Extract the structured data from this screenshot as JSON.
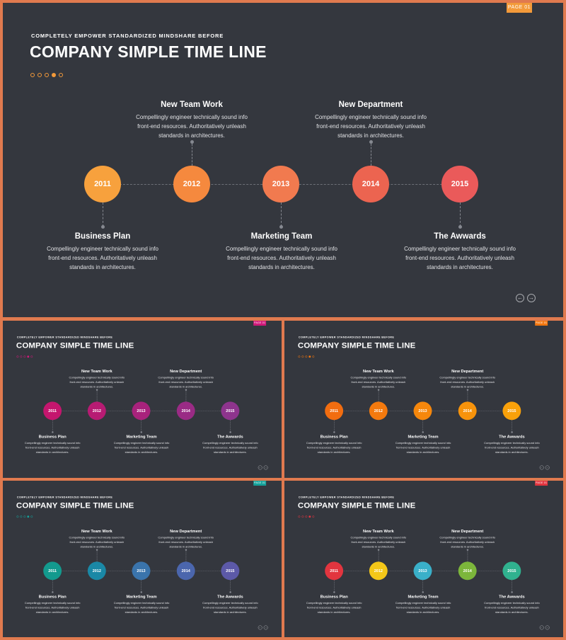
{
  "slides": [
    {
      "page_badge": "PAGE 01",
      "subtitle": "COMPLETELY EMPOWER STANDARDIZED MINDSHARE BEFORE",
      "title": "COMPANY SIMPLE TIME LINE",
      "accent": "#f39a3a",
      "dot_color": "#f39a3a",
      "circle_colors": [
        "#f7a13d",
        "#f5893e",
        "#f17a4f",
        "#ec6450",
        "#ea5a5a"
      ],
      "years": [
        "2011",
        "2012",
        "2013",
        "2014",
        "2015"
      ],
      "top_milestones": [
        {
          "title": "New Team Work",
          "desc": "Compellingly engineer technically sound info front-end resources. Authoritatively unleash standards in architectures."
        },
        {
          "title": "New Department",
          "desc": "Compellingly engineer technically sound info front-end resources. Authoritatively unleash standards in architectures."
        }
      ],
      "bottom_milestones": [
        {
          "title": "Business Plan",
          "desc": "Compellingly engineer technically sound info front-end resources. Authoritatively unleash standards in architectures."
        },
        {
          "title": "Marketing Team",
          "desc": "Compellingly engineer technically sound info front-end resources. Authoritatively unleash standards in architectures."
        },
        {
          "title": "The Awwards",
          "desc": "Compellingly engineer technically sound info front-end resources. Authoritatively unleash standards in architectures."
        }
      ],
      "nav_prev": "←",
      "nav_next": "→"
    },
    {
      "page_badge": "PAGE 01",
      "subtitle": "COMPLETELY EMPOWER STANDARDIZED MINDSHARE BEFORE",
      "title": "COMPANY SIMPLE TIME LINE",
      "accent": "#d1197a",
      "dot_color": "#d1197a",
      "circle_colors": [
        "#c4166e",
        "#b71b73",
        "#a8227c",
        "#9a2b85",
        "#8e348d"
      ],
      "years": [
        "2011",
        "2012",
        "2013",
        "2014",
        "2015"
      ],
      "top_milestones": [
        {
          "title": "New Team Work",
          "desc": "Compellingly engineer technically sound info front-end resources. Authoritatively unleash standards in architectures."
        },
        {
          "title": "New Department",
          "desc": "Compellingly engineer technically sound info front-end resources. Authoritatively unleash standards in architectures."
        }
      ],
      "bottom_milestones": [
        {
          "title": "Business Plan",
          "desc": "Compellingly engineer technically sound info front-end resources. Authoritatively unleash standards in architectures."
        },
        {
          "title": "Marketing Team",
          "desc": "Compellingly engineer technically sound info front-end resources. Authoritatively unleash standards in architectures."
        },
        {
          "title": "The Awwards",
          "desc": "Compellingly engineer technically sound info front-end resources. Authoritatively unleash standards in architectures."
        }
      ],
      "nav_prev": "←",
      "nav_next": "→"
    },
    {
      "page_badge": "PAGE 01",
      "subtitle": "COMPLETELY EMPOWER STANDARDIZED MINDSHARE BEFORE",
      "title": "COMPANY SIMPLE TIME LINE",
      "accent": "#f2760f",
      "dot_color": "#f2760f",
      "circle_colors": [
        "#f26d10",
        "#f47a0e",
        "#f6870c",
        "#f7930b",
        "#f9a10a"
      ],
      "years": [
        "2011",
        "2012",
        "2013",
        "2014",
        "2015"
      ],
      "top_milestones": [
        {
          "title": "New Team Work",
          "desc": "Compellingly engineer technically sound info front-end resources. Authoritatively unleash standards in architectures."
        },
        {
          "title": "New Department",
          "desc": "Compellingly engineer technically sound info front-end resources. Authoritatively unleash standards in architectures."
        }
      ],
      "bottom_milestones": [
        {
          "title": "Business Plan",
          "desc": "Compellingly engineer technically sound info front-end resources. Authoritatively unleash standards in architectures."
        },
        {
          "title": "Marketing Team",
          "desc": "Compellingly engineer technically sound info front-end resources. Authoritatively unleash standards in architectures."
        },
        {
          "title": "The Awwards",
          "desc": "Compellingly engineer technically sound info front-end resources. Authoritatively unleash standards in architectures."
        }
      ],
      "nav_prev": "←",
      "nav_next": "→"
    },
    {
      "page_badge": "PAGE 01",
      "subtitle": "COMPLETELY EMPOWER STANDARDIZED MINDSHARE BEFORE",
      "title": "COMPANY SIMPLE TIME LINE",
      "accent": "#15a19a",
      "dot_color": "#15a19a",
      "circle_colors": [
        "#139a8e",
        "#1a88a6",
        "#3a74ac",
        "#4b66ad",
        "#5c59a8"
      ],
      "years": [
        "2011",
        "2012",
        "2013",
        "2014",
        "2015"
      ],
      "top_milestones": [
        {
          "title": "New Team Work",
          "desc": "Compellingly engineer technically sound info front-end resources. Authoritatively unleash standards in architectures."
        },
        {
          "title": "New Department",
          "desc": "Compellingly engineer technically sound info front-end resources. Authoritatively unleash standards in architectures."
        }
      ],
      "bottom_milestones": [
        {
          "title": "Business Plan",
          "desc": "Compellingly engineer technically sound info front-end resources. Authoritatively unleash standards in architectures."
        },
        {
          "title": "Marketing Team",
          "desc": "Compellingly engineer technically sound info front-end resources. Authoritatively unleash standards in architectures."
        },
        {
          "title": "The Awwards",
          "desc": "Compellingly engineer technically sound info front-end resources. Authoritatively unleash standards in architectures."
        }
      ],
      "nav_prev": "←",
      "nav_next": "→"
    },
    {
      "page_badge": "PAGE 01",
      "subtitle": "COMPLETELY EMPOWER STANDARDIZED MINDSHARE BEFORE",
      "title": "COMPANY SIMPLE TIME LINE",
      "accent": "#e2353f",
      "dot_color": "#e2353f",
      "circle_colors": [
        "#e2353f",
        "#f4c718",
        "#3ab0c9",
        "#7cb63b",
        "#30b28f"
      ],
      "years": [
        "2011",
        "2012",
        "2013",
        "2014",
        "2015"
      ],
      "top_milestones": [
        {
          "title": "New Team Work",
          "desc": "Compellingly engineer technically sound info front-end resources. Authoritatively unleash standards in architectures."
        },
        {
          "title": "New Department",
          "desc": "Compellingly engineer technically sound info front-end resources. Authoritatively unleash standards in architectures."
        }
      ],
      "bottom_milestones": [
        {
          "title": "Business Plan",
          "desc": "Compellingly engineer technically sound info front-end resources. Authoritatively unleash standards in architectures."
        },
        {
          "title": "Marketing Team",
          "desc": "Compellingly engineer technically sound info front-end resources. Authoritatively unleash standards in architectures."
        },
        {
          "title": "The Awwards",
          "desc": "Compellingly engineer technically sound info front-end resources. Authoritatively unleash standards in architectures."
        }
      ],
      "nav_prev": "←",
      "nav_next": "→"
    }
  ]
}
